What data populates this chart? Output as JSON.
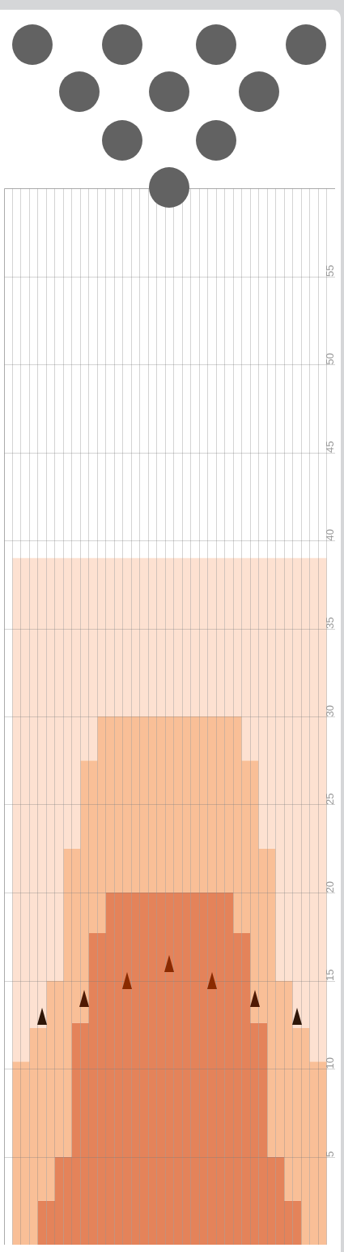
{
  "chart_data": {
    "type": "bar",
    "stacked": true,
    "categories": [
      null,
      null,
      null,
      null,
      null,
      null,
      null,
      null,
      null,
      null,
      null,
      null,
      null,
      null,
      null,
      null,
      null,
      null,
      null,
      null,
      null,
      null,
      null,
      null,
      null,
      null,
      null,
      null,
      null,
      null,
      null,
      null,
      null,
      null,
      null,
      null,
      null,
      null,
      null
    ],
    "series": [
      {
        "color": "#e4835a",
        "values": [
          0,
          0,
          0,
          0,
          2.5,
          2.5,
          5,
          5,
          12.6,
          12.6,
          17.7,
          17.7,
          20,
          20,
          20,
          20,
          20,
          20,
          20,
          20,
          20,
          20,
          20,
          20,
          20,
          20,
          20,
          17.7,
          17.7,
          12.6,
          12.6,
          5,
          5,
          2.5,
          2.5,
          0,
          0,
          0,
          0
        ]
      },
      {
        "color": "#f9bf97",
        "values": [
          0,
          10.4,
          10.4,
          12.3,
          9.8,
          12.5,
          10,
          17.5,
          9.9,
          14.9,
          9.8,
          12.3,
          10,
          10,
          10,
          10,
          10,
          10,
          10,
          10,
          10,
          10,
          10,
          10,
          10,
          10,
          10,
          12.3,
          9.8,
          14.9,
          9.9,
          17.5,
          10,
          12.5,
          9.8,
          12.3,
          10.4,
          10.4,
          0
        ]
      },
      {
        "color": "#fde1d1",
        "values": [
          0,
          28.6,
          28.6,
          26.7,
          26.7,
          24,
          24,
          16.5,
          16.5,
          11.5,
          11.5,
          9,
          9,
          9,
          9,
          9,
          9,
          9,
          9,
          9,
          9,
          9,
          9,
          9,
          9,
          9,
          9,
          9,
          11.5,
          11.5,
          16.5,
          16.5,
          24,
          24,
          26.7,
          26.7,
          28.6,
          28.6,
          0
        ]
      }
    ],
    "ylim": [
      0,
      60
    ],
    "yticks": [
      {
        "value": 0,
        "label": null
      },
      5,
      10,
      15,
      20,
      25,
      30,
      35,
      40,
      45,
      50,
      55,
      {
        "value": 60,
        "label": null
      }
    ],
    "grid": true,
    "tick_labels": "y"
  }
}
